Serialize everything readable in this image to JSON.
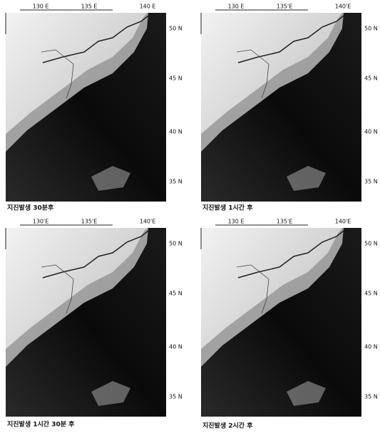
{
  "panels": [
    {
      "caption": "지진발생 30분후",
      "xlabels": [
        "130 E",
        "135 E",
        "140 E"
      ],
      "ylabels": [
        "50 N",
        "45 N",
        "40 N",
        "35 N"
      ]
    },
    {
      "caption": "지진발생 1시간 후",
      "xlabels": [
        "130 E",
        "135'E",
        "140'E"
      ],
      "ylabels": [
        "50 N",
        "45 N",
        "40 N",
        "35 N"
      ]
    },
    {
      "caption": "지진발생 1시간 30분 후",
      "xlabels": [
        "130'E",
        "135'E",
        "140'E"
      ],
      "ylabels": [
        "50 N",
        "45 N",
        "40 N",
        "35 N"
      ]
    },
    {
      "caption": "지진발생 2시간 후",
      "xlabels": [
        "130 E",
        "135'E",
        "140'E"
      ],
      "ylabels": [
        "50 N",
        "45 N",
        "40 N",
        "35 N"
      ]
    }
  ]
}
